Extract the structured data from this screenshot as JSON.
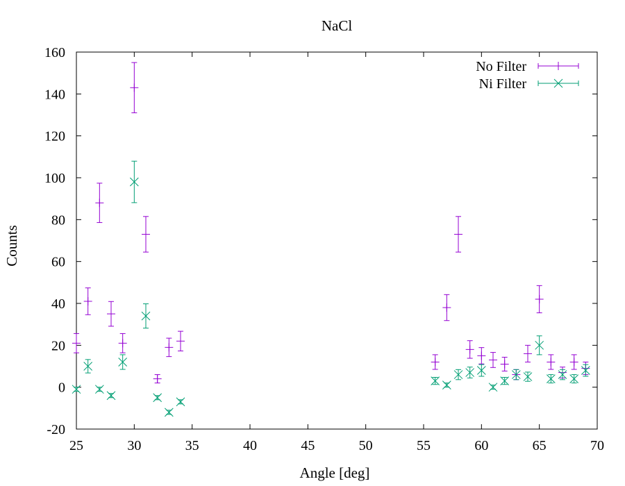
{
  "chart_data": {
    "type": "scatter",
    "title": "NaCl",
    "xlabel": "Angle [deg]",
    "ylabel": "Counts",
    "xlim": [
      25,
      70
    ],
    "ylim": [
      -20,
      160
    ],
    "xticks": [
      25,
      30,
      35,
      40,
      45,
      50,
      55,
      60,
      65,
      70
    ],
    "yticks": [
      -20,
      0,
      20,
      40,
      60,
      80,
      100,
      120,
      140,
      160
    ],
    "grid": false,
    "legend_position": "top-right",
    "series": [
      {
        "name": "No Filter",
        "color": "#9400d3",
        "marker": "plus",
        "error_bars": true,
        "points": [
          {
            "x": 25,
            "y": 21,
            "err": 4.6
          },
          {
            "x": 26,
            "y": 41,
            "err": 6.4
          },
          {
            "x": 27,
            "y": 88,
            "err": 9.4
          },
          {
            "x": 28,
            "y": 35,
            "err": 5.9
          },
          {
            "x": 29,
            "y": 21,
            "err": 4.6
          },
          {
            "x": 30,
            "y": 143,
            "err": 12
          },
          {
            "x": 31,
            "y": 73,
            "err": 8.5
          },
          {
            "x": 32,
            "y": 4,
            "err": 2
          },
          {
            "x": 33,
            "y": 19,
            "err": 4.4
          },
          {
            "x": 34,
            "y": 22,
            "err": 4.7
          },
          {
            "x": 56,
            "y": 12,
            "err": 3.5
          },
          {
            "x": 57,
            "y": 38,
            "err": 6.2
          },
          {
            "x": 58,
            "y": 73,
            "err": 8.5
          },
          {
            "x": 59,
            "y": 18,
            "err": 4.2
          },
          {
            "x": 60,
            "y": 15,
            "err": 3.9
          },
          {
            "x": 61,
            "y": 13,
            "err": 3.6
          },
          {
            "x": 62,
            "y": 11,
            "err": 3.3
          },
          {
            "x": 63,
            "y": 6,
            "err": 2.4
          },
          {
            "x": 64,
            "y": 16,
            "err": 4
          },
          {
            "x": 65,
            "y": 42,
            "err": 6.5
          },
          {
            "x": 66,
            "y": 12,
            "err": 3.5
          },
          {
            "x": 67,
            "y": 7,
            "err": 2.6
          },
          {
            "x": 68,
            "y": 12,
            "err": 3.5
          },
          {
            "x": 69,
            "y": 9,
            "err": 3
          }
        ]
      },
      {
        "name": "Ni Filter",
        "color": "#009e73",
        "marker": "cross",
        "error_bars": true,
        "points": [
          {
            "x": 25,
            "y": -1,
            "err": 1
          },
          {
            "x": 26,
            "y": 10,
            "err": 3.2
          },
          {
            "x": 27,
            "y": -1,
            "err": 1
          },
          {
            "x": 28,
            "y": -4,
            "err": 1
          },
          {
            "x": 29,
            "y": 12,
            "err": 3.5
          },
          {
            "x": 30,
            "y": 98,
            "err": 9.9
          },
          {
            "x": 31,
            "y": 34,
            "err": 5.8
          },
          {
            "x": 32,
            "y": -5,
            "err": 1
          },
          {
            "x": 33,
            "y": -12,
            "err": 1
          },
          {
            "x": 34,
            "y": -7,
            "err": 1
          },
          {
            "x": 56,
            "y": 3,
            "err": 1.7
          },
          {
            "x": 57,
            "y": 1,
            "err": 1
          },
          {
            "x": 58,
            "y": 6,
            "err": 2.4
          },
          {
            "x": 59,
            "y": 7,
            "err": 2.6
          },
          {
            "x": 60,
            "y": 8,
            "err": 2.8
          },
          {
            "x": 61,
            "y": 0,
            "err": 1
          },
          {
            "x": 62,
            "y": 3,
            "err": 1.7
          },
          {
            "x": 63,
            "y": 6,
            "err": 2.4
          },
          {
            "x": 64,
            "y": 5,
            "err": 2.2
          },
          {
            "x": 65,
            "y": 20,
            "err": 4.5
          },
          {
            "x": 66,
            "y": 4,
            "err": 2
          },
          {
            "x": 67,
            "y": 6,
            "err": 2.4
          },
          {
            "x": 68,
            "y": 4,
            "err": 2
          },
          {
            "x": 69,
            "y": 8,
            "err": 2.8
          }
        ]
      }
    ]
  }
}
